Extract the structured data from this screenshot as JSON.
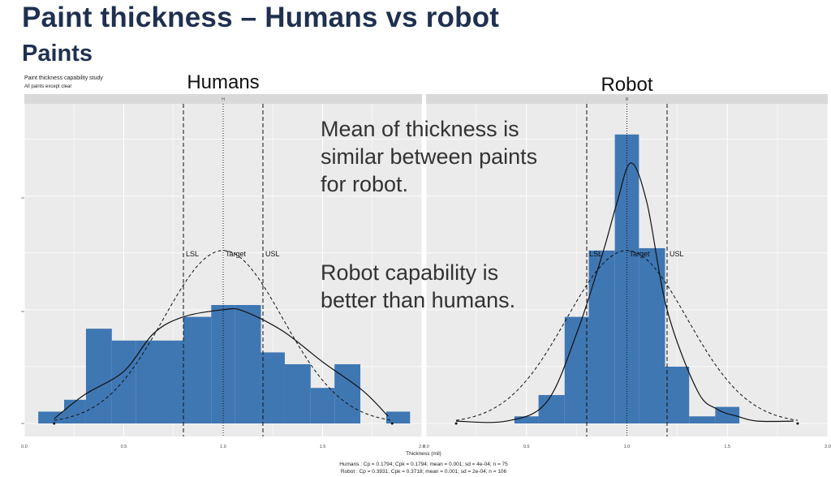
{
  "slide": {
    "title": "Paint thickness – Humans vs robot",
    "subtitle": "Paints",
    "callouts": [
      "Mean of thickness is\nsimilar between paints\nfor robot.",
      "Robot capability is\nbetter than humans."
    ]
  },
  "colors": {
    "panel_bg": "#ebebeb",
    "strip_bg": "#d9d9d9",
    "bar_fill": "#3f77b3",
    "grid": "#ffffff",
    "title_text": "#1f3050"
  },
  "chart_data": {
    "type": "bar",
    "title": "Paint thickness capability study",
    "subtitle": "All paints except clear",
    "xlabel": "Thickness (mil)",
    "ylabel": "",
    "xlim": [
      0,
      2
    ],
    "xticks": [
      0.0,
      0.5,
      1.0,
      1.5,
      2.0
    ],
    "xtick_labels": [
      "0.0",
      "0.5",
      "1.0",
      "1.5",
      "2.0"
    ],
    "ylim": [
      0,
      11
    ],
    "grid": true,
    "spec_limits": {
      "LSL": 0.8,
      "Target": 1.0,
      "USL": 1.2
    },
    "spec_labels": [
      "LSL",
      "Target",
      "USL"
    ],
    "footnotes": [
      "Humans : Cp = 0.1794; Cpk = 0.1794; mean = 0.001; sd = 4e-04; n = 75",
      "Robot : Cp = 0.3931; Cpk = 0.3718; mean = 0.001; sd = 2e-04; n = 106"
    ],
    "panels": [
      {
        "label": "Humans",
        "strip": "H",
        "bin_edges": [
          0.07,
          0.2,
          0.31,
          0.44,
          0.56,
          0.8,
          0.94,
          1.06,
          1.19,
          1.31,
          1.44,
          1.56,
          1.69,
          1.82,
          1.94
        ],
        "counts": [
          0.5,
          1,
          4,
          3.5,
          3.5,
          4.5,
          5,
          5,
          3,
          2.5,
          1.5,
          2.5,
          0,
          0.5
        ],
        "density_curve": [
          [
            0.15,
            0.2
          ],
          [
            0.3,
            1.2
          ],
          [
            0.5,
            2.2
          ],
          [
            0.65,
            3.8
          ],
          [
            0.8,
            4.5
          ],
          [
            1.0,
            4.8
          ],
          [
            1.1,
            4.75
          ],
          [
            1.3,
            3.9
          ],
          [
            1.5,
            2.6
          ],
          [
            1.7,
            1.4
          ],
          [
            1.83,
            0.3
          ]
        ],
        "normal_curve": {
          "mean": 1.0,
          "sd": 0.3,
          "peak": 7.3,
          "x_range": [
            0.15,
            1.85
          ]
        }
      },
      {
        "label": "Robot",
        "strip": "R",
        "bin_edges": [
          0.44,
          0.56,
          0.69,
          0.81,
          0.94,
          1.06,
          1.19,
          1.31,
          1.44,
          1.56
        ],
        "counts": [
          0.3,
          1.2,
          4.5,
          7.3,
          12.2,
          7.4,
          2.4,
          0.3,
          0.7
        ],
        "density_curve": [
          [
            0.15,
            0.1
          ],
          [
            0.4,
            0.1
          ],
          [
            0.6,
            0.9
          ],
          [
            0.75,
            3.8
          ],
          [
            0.88,
            7.2
          ],
          [
            0.95,
            9.3
          ],
          [
            1.02,
            11.0
          ],
          [
            1.1,
            9.3
          ],
          [
            1.2,
            4.8
          ],
          [
            1.35,
            1.4
          ],
          [
            1.45,
            0.6
          ],
          [
            1.55,
            0.3
          ],
          [
            1.65,
            0.1
          ],
          [
            1.83,
            0.1
          ]
        ],
        "normal_curve": {
          "mean": 1.0,
          "sd": 0.3,
          "peak": 7.3,
          "x_range": [
            0.15,
            1.85
          ]
        }
      }
    ]
  }
}
